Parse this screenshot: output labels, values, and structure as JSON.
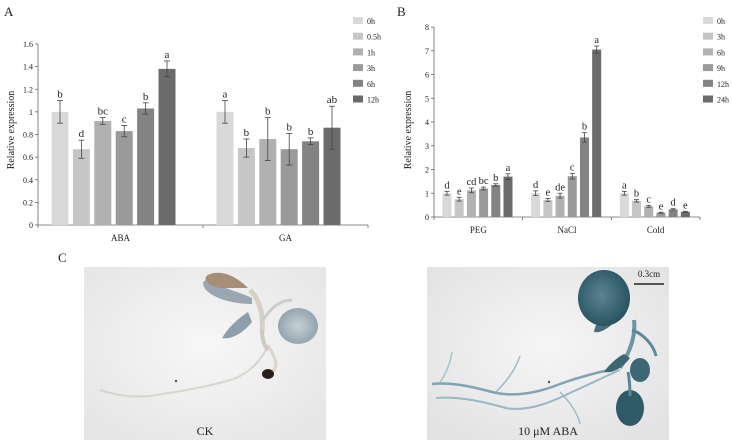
{
  "panels": {
    "a": {
      "letter": "A"
    },
    "b": {
      "letter": "B"
    },
    "c": {
      "letter": "C"
    }
  },
  "colors": [
    "#d9d9d9",
    "#c6c6c6",
    "#b1b1b1",
    "#9a9a9a",
    "#838383",
    "#6b6b6b"
  ],
  "chart_data": [
    {
      "type": "bar",
      "panel": "A",
      "categories": [
        "ABA",
        "GA"
      ],
      "series": [
        {
          "name": "0h",
          "values": [
            1.0,
            1.0
          ],
          "errors": [
            0.1,
            0.1
          ],
          "letters": [
            "b",
            "a"
          ]
        },
        {
          "name": "0.5h",
          "values": [
            0.67,
            0.68
          ],
          "errors": [
            0.08,
            0.08
          ],
          "letters": [
            "d",
            "b"
          ]
        },
        {
          "name": "1h",
          "values": [
            0.92,
            0.76
          ],
          "errors": [
            0.03,
            0.19
          ],
          "letters": [
            "bc",
            "b"
          ]
        },
        {
          "name": "3h",
          "values": [
            0.83,
            0.67
          ],
          "errors": [
            0.05,
            0.14
          ],
          "letters": [
            "c",
            "b"
          ]
        },
        {
          "name": "6h",
          "values": [
            1.03,
            0.74
          ],
          "errors": [
            0.05,
            0.03
          ],
          "letters": [
            "b",
            "b"
          ]
        },
        {
          "name": "12h",
          "values": [
            1.38,
            0.86
          ],
          "errors": [
            0.07,
            0.19
          ],
          "letters": [
            "a",
            "ab"
          ]
        }
      ],
      "ylabel": "Relative expression",
      "ylim": [
        0,
        1.6
      ],
      "yticks": [
        "0",
        "0.2",
        "0.4",
        "0.6",
        "0.8",
        "1",
        "1.2",
        "1.4",
        "1.6"
      ],
      "legend": "top-right"
    },
    {
      "type": "bar",
      "panel": "B",
      "categories": [
        "PEG",
        "NaCl",
        "Cold"
      ],
      "series": [
        {
          "name": "0h",
          "values": [
            1.0,
            1.0,
            1.0
          ],
          "errors": [
            0.08,
            0.1,
            0.08
          ],
          "letters": [
            "d",
            "d",
            "a"
          ]
        },
        {
          "name": "3h",
          "values": [
            0.75,
            0.72,
            0.68
          ],
          "errors": [
            0.08,
            0.06,
            0.05
          ],
          "letters": [
            "e",
            "e",
            "b"
          ]
        },
        {
          "name": "6h",
          "values": [
            1.12,
            0.9,
            0.45
          ],
          "errors": [
            0.1,
            0.1,
            0.04
          ],
          "letters": [
            "cd",
            "de",
            "c"
          ]
        },
        {
          "name": "9h",
          "values": [
            1.2,
            1.72,
            0.18
          ],
          "errors": [
            0.06,
            0.12,
            0.02
          ],
          "letters": [
            "bc",
            "c",
            "e"
          ]
        },
        {
          "name": "12h",
          "values": [
            1.35,
            3.35,
            0.32
          ],
          "errors": [
            0.05,
            0.2,
            0.03
          ],
          "letters": [
            "b",
            "b",
            "d"
          ]
        },
        {
          "name": "24h",
          "values": [
            1.7,
            7.05,
            0.22
          ],
          "errors": [
            0.12,
            0.15,
            0.02
          ],
          "letters": [
            "a",
            "a",
            "e"
          ]
        }
      ],
      "ylabel": "Relative expression",
      "ylim": [
        0,
        8
      ],
      "yticks": [
        "0",
        "1",
        "2",
        "3",
        "4",
        "5",
        "6",
        "7",
        "8"
      ],
      "legend": "top-right"
    }
  ],
  "photos": {
    "left_caption": "CK",
    "right_caption": "10 μM ABA",
    "scale_bar": "0.3cm"
  }
}
